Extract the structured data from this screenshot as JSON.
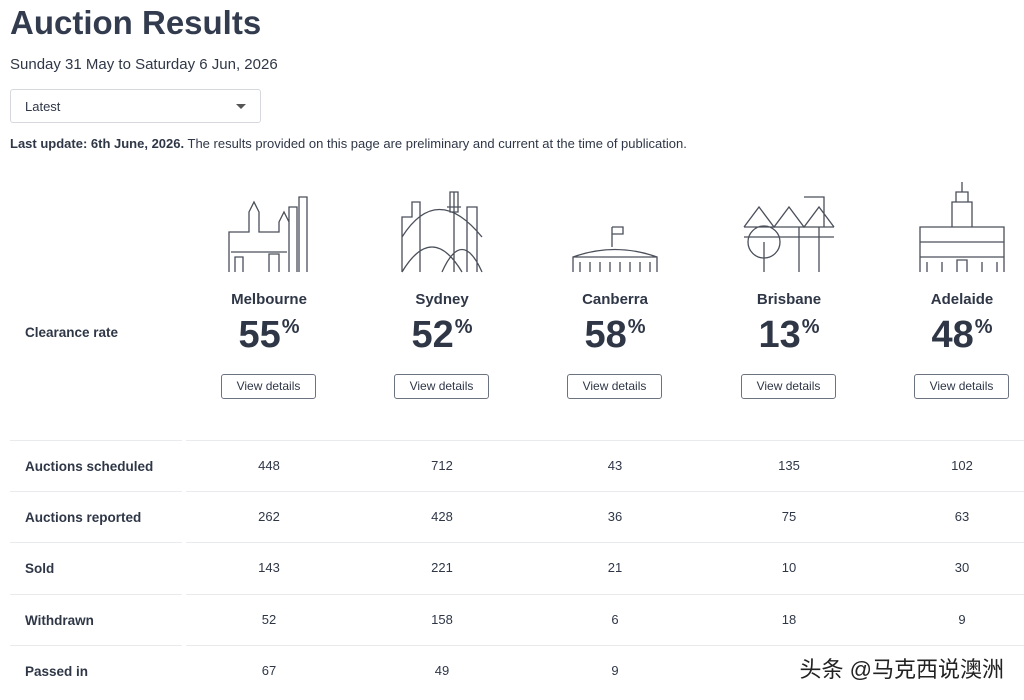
{
  "header": {
    "title": "Auction Results",
    "subtitle": "Sunday 31 May to Saturday 6 Jun, 2026",
    "dropdown": "Latest",
    "update_bold": "Last update: 6th June, 2026.",
    "update_text": "The results provided on this page are preliminary and current at the time of publication."
  },
  "clearance": {
    "label": "Clearance rate",
    "button_label": "View details",
    "cities": [
      {
        "name": "Melbourne",
        "rate": "55",
        "suffix": "%"
      },
      {
        "name": "Sydney",
        "rate": "52",
        "suffix": "%"
      },
      {
        "name": "Canberra",
        "rate": "58",
        "suffix": "%"
      },
      {
        "name": "Brisbane",
        "rate": "13",
        "suffix": "%"
      },
      {
        "name": "Adelaide",
        "rate": "48",
        "suffix": "%"
      }
    ]
  },
  "table": {
    "rows": [
      {
        "label": "Auctions scheduled",
        "values": [
          "448",
          "712",
          "43",
          "135",
          "102"
        ]
      },
      {
        "label": "Auctions reported",
        "values": [
          "262",
          "428",
          "36",
          "75",
          "63"
        ]
      },
      {
        "label": "Sold",
        "values": [
          "143",
          "221",
          "21",
          "10",
          "30"
        ]
      },
      {
        "label": "Withdrawn",
        "values": [
          "52",
          "158",
          "6",
          "18",
          "9"
        ]
      },
      {
        "label": "Passed in",
        "values": [
          "67",
          "49",
          "9",
          "",
          ""
        ]
      }
    ]
  },
  "watermark": "头条 @马克西说澳洲"
}
